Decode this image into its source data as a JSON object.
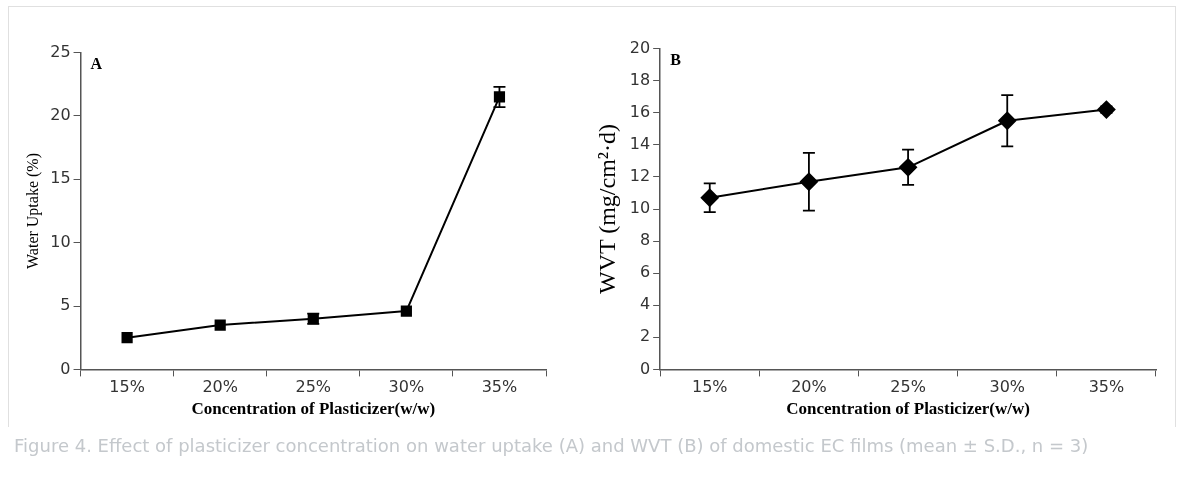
{
  "chart_data": [
    {
      "type": "line",
      "ylabel": "Water Uptake (%)",
      "xlabel": "Concentration of Plasticizer(w/w)",
      "categories": [
        "15%",
        "20%",
        "25%",
        "30%",
        "35%"
      ],
      "series": [
        {
          "color": "#000000",
          "values": [
            2.5,
            3.5,
            4.0,
            4.6,
            21.5
          ],
          "errors": [
            null,
            null,
            0.4,
            null,
            0.8
          ]
        }
      ],
      "ylim": [
        0,
        25
      ],
      "yticks": [
        0,
        5,
        10,
        15,
        20,
        25
      ],
      "marker": "square",
      "legend": false,
      "annotations": [
        "A",
        "Figure 4. Effect of plasticizer concentration on water uptake (A) and WVT (B) of domestic EC films (mean ± S.D., n = 3)"
      ]
    },
    {
      "type": "line",
      "ylabel": "WVT (mg/cm²·d)",
      "xlabel": "Concentration of Plasticizer(w/w)",
      "categories": [
        "15%",
        "20%",
        "25%",
        "30%",
        "35%"
      ],
      "series": [
        {
          "color": "#000000",
          "values": [
            10.7,
            11.7,
            12.6,
            15.5,
            16.2
          ],
          "errors": [
            0.9,
            1.8,
            1.1,
            1.6,
            0.2
          ]
        }
      ],
      "ylim": [
        0,
        20
      ],
      "yticks": [
        0,
        2,
        4,
        6,
        8,
        10,
        12,
        14,
        16,
        18,
        20
      ],
      "marker": "diamond",
      "legend": false,
      "annotations": [
        "B"
      ]
    }
  ]
}
